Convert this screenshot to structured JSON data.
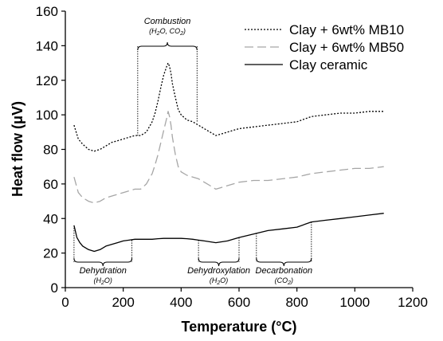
{
  "chart_data": {
    "type": "line",
    "xlabel": "Temperature (°C)",
    "ylabel": "Heat flow (μV)",
    "xlim": [
      0,
      1200
    ],
    "ylim": [
      0,
      160
    ],
    "xticks": [
      0,
      200,
      400,
      600,
      800,
      1000,
      1200
    ],
    "yticks": [
      0,
      20,
      40,
      60,
      80,
      100,
      120,
      140,
      160
    ],
    "grid": false,
    "legend_position": "top-right",
    "series": [
      {
        "name": "Clay + 6wt% MB10",
        "style": "dotted",
        "color": "#000000",
        "x": [
          30,
          45,
          60,
          80,
          100,
          120,
          140,
          160,
          180,
          200,
          220,
          240,
          260,
          280,
          300,
          310,
          320,
          330,
          340,
          350,
          355,
          360,
          365,
          370,
          380,
          390,
          400,
          420,
          440,
          460,
          480,
          500,
          520,
          540,
          560,
          580,
          600,
          650,
          700,
          750,
          800,
          850,
          900,
          950,
          1000,
          1050,
          1100
        ],
        "y": [
          94,
          86,
          83,
          80,
          79,
          80,
          82,
          84,
          85,
          86,
          87,
          88,
          88,
          90,
          96,
          101,
          108,
          116,
          123,
          128,
          130,
          128,
          124,
          118,
          110,
          103,
          100,
          97,
          96,
          94,
          92,
          90,
          88,
          89,
          90,
          91,
          92,
          93,
          94,
          95,
          96,
          99,
          100,
          101,
          101,
          102,
          102
        ]
      },
      {
        "name": "Clay + 6wt% MB50",
        "style": "dashed",
        "color": "#a6a6a6",
        "x": [
          30,
          45,
          60,
          80,
          100,
          120,
          140,
          160,
          180,
          200,
          220,
          240,
          260,
          280,
          300,
          310,
          320,
          330,
          340,
          350,
          355,
          360,
          365,
          370,
          380,
          390,
          400,
          420,
          440,
          460,
          480,
          500,
          520,
          540,
          560,
          580,
          600,
          650,
          700,
          750,
          800,
          850,
          900,
          950,
          1000,
          1050,
          1100
        ],
        "y": [
          64,
          55,
          52,
          50,
          49,
          50,
          52,
          53,
          54,
          55,
          56,
          57,
          57,
          60,
          66,
          71,
          77,
          84,
          91,
          98,
          102,
          99,
          94,
          87,
          77,
          70,
          67,
          65,
          64,
          63,
          61,
          59,
          57,
          58,
          59,
          60,
          61,
          62,
          62,
          63,
          64,
          66,
          67,
          68,
          69,
          69,
          70
        ]
      },
      {
        "name": "Clay ceramic",
        "style": "solid",
        "color": "#000000",
        "x": [
          30,
          40,
          50,
          60,
          80,
          100,
          120,
          140,
          160,
          180,
          200,
          220,
          240,
          260,
          280,
          300,
          320,
          340,
          360,
          380,
          400,
          420,
          440,
          460,
          480,
          500,
          520,
          540,
          560,
          580,
          600,
          650,
          700,
          750,
          800,
          850,
          900,
          950,
          1000,
          1050,
          1100
        ],
        "y": [
          36,
          29,
          26,
          24,
          22,
          21,
          22,
          24,
          25,
          26,
          27,
          27.5,
          28,
          28,
          28,
          28,
          28.3,
          28.5,
          28.5,
          28.5,
          28.5,
          28.3,
          28,
          27.5,
          27,
          26.5,
          26,
          26.5,
          27,
          28,
          29,
          31,
          33,
          34,
          35,
          38,
          39,
          40,
          41,
          42,
          43
        ]
      }
    ],
    "annotations": [
      {
        "title": "Combustion",
        "sub_pre": "(H",
        "sub_mid": "O, CO",
        "sub_post": ")",
        "x_start": 250,
        "x_end": 455,
        "position": "above",
        "y_line_start": 88,
        "y_line_end": 96
      },
      {
        "title": "Dehydration",
        "sub_pre": "(H",
        "sub_mid": "O)",
        "sub_post": "",
        "x_start": 30,
        "x_end": 230,
        "position": "below",
        "y_line_start": 36,
        "y_line_end": 27.5
      },
      {
        "title": "Dehydroxylation",
        "sub_pre": "(H",
        "sub_mid": "O)",
        "sub_post": "",
        "x_start": 460,
        "x_end": 600,
        "position": "below",
        "y_line_start": 27.5,
        "y_line_end": 29
      },
      {
        "title": "Decarbonation",
        "sub_pre": "(CO",
        "sub_mid": ")",
        "sub_post": "",
        "x_start": 660,
        "x_end": 850,
        "position": "below",
        "y_line_start": 31.5,
        "y_line_end": 38
      }
    ]
  }
}
